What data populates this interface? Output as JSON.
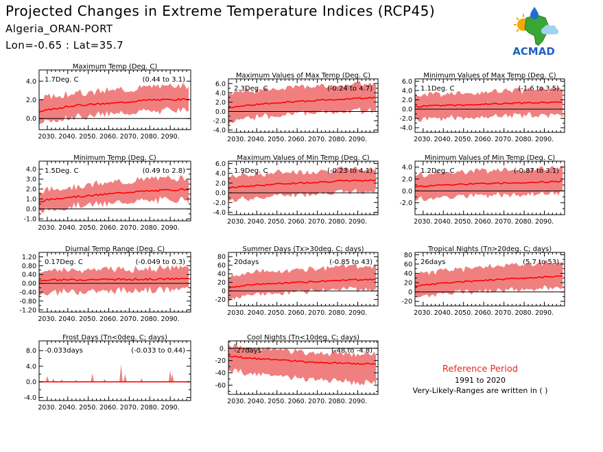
{
  "header": {
    "title": "Projected Changes in Extreme Temperature Indices (RCP45)",
    "station": "Algeria_ORAN-PORT",
    "coords": "Lon=-0.65 : Lat=35.7"
  },
  "logo": {
    "text": "ACMAD"
  },
  "reference": {
    "title": "Reference Period",
    "years": "1991 to 2020",
    "note": "Very-Likely-Ranges are written in ( )"
  },
  "colors": {
    "line": "#ff0000",
    "band": "#f08080",
    "zero": "#000000",
    "ref_title": "#e8281e"
  },
  "chart_data": [
    {
      "type": "area",
      "title": "Maximum Temp (Deg. C)",
      "stat": "1.7Deg. C",
      "range": "(0.44 to 3.1)",
      "ylim": [
        -1.2,
        5.2
      ],
      "yticks": [
        0.0,
        2.0,
        4.0
      ],
      "ytick_labels": [
        "0.0",
        "2.0",
        "4.0"
      ],
      "xlim": [
        2026,
        2100
      ],
      "xticks": [
        2030,
        2040,
        2050,
        2060,
        2070,
        2080,
        2090
      ],
      "xtick_labels": [
        "2030.",
        "2040.",
        "2050.",
        "2060.",
        "2070.",
        "2080.",
        "2090."
      ],
      "x": [
        2026,
        2030,
        2040,
        2050,
        2060,
        2070,
        2080,
        2090,
        2100
      ],
      "mean": [
        0.7,
        0.9,
        1.3,
        1.5,
        1.6,
        1.8,
        2.0,
        2.0,
        2.1
      ],
      "lower": [
        -0.5,
        -0.4,
        0.1,
        0.3,
        0.5,
        0.6,
        0.8,
        0.9,
        0.9
      ],
      "upper": [
        2.0,
        2.3,
        2.6,
        2.8,
        3.0,
        3.2,
        3.4,
        3.5,
        3.6
      ]
    },
    {
      "type": "area",
      "title": "Maximum Values of Max Temp (Deg. C)",
      "stat": "2.3Deg. C",
      "range": "(-0.24 to 4.7)",
      "ylim": [
        -4.5,
        7.0
      ],
      "yticks": [
        -4,
        -3,
        -2,
        -1,
        0,
        1,
        2,
        3,
        4,
        5,
        6
      ],
      "ytick_labels": [
        "-4.0",
        "",
        "-2.0",
        "",
        "0.0",
        "",
        "2.0",
        "",
        "4.0",
        "",
        "6.0"
      ],
      "xlim": [
        2026,
        2100
      ],
      "xticks": [
        2030,
        2040,
        2050,
        2060,
        2070,
        2080,
        2090
      ],
      "xtick_labels": [
        "2030.",
        "2040.",
        "2050.",
        "2060.",
        "2070.",
        "2080.",
        "2090."
      ],
      "x": [
        2026,
        2030,
        2040,
        2050,
        2060,
        2070,
        2080,
        2090,
        2100
      ],
      "mean": [
        0.8,
        1.0,
        1.5,
        1.9,
        2.1,
        2.4,
        2.6,
        2.8,
        3.0
      ],
      "lower": [
        -2.5,
        -2.0,
        -1.2,
        -0.8,
        -0.5,
        -0.3,
        0.0,
        0.1,
        0.2
      ],
      "upper": [
        3.8,
        4.2,
        4.6,
        5.0,
        5.2,
        5.4,
        5.6,
        5.8,
        6.0
      ]
    },
    {
      "type": "area",
      "title": "Minimum Values of Max Temp (Deg. C)",
      "stat": "1.1Deg. C",
      "range": "(-1.6 to 3.5)",
      "ylim": [
        -5.0,
        6.5
      ],
      "yticks": [
        -4,
        -3,
        -2,
        -1,
        0,
        1,
        2,
        3,
        4,
        5,
        6
      ],
      "ytick_labels": [
        "-4.0",
        "",
        "-2.0",
        "",
        "0.0",
        "",
        "2.0",
        "",
        "4.0",
        "",
        "6.0"
      ],
      "xlim": [
        2026,
        2100
      ],
      "xticks": [
        2030,
        2040,
        2050,
        2060,
        2070,
        2080,
        2090
      ],
      "xtick_labels": [
        "2030.",
        "2040.",
        "2050.",
        "2060.",
        "2070.",
        "2080.",
        "2090."
      ],
      "x": [
        2026,
        2030,
        2040,
        2050,
        2060,
        2070,
        2080,
        2090,
        2100
      ],
      "mean": [
        0.5,
        0.6,
        0.8,
        0.9,
        1.1,
        1.2,
        1.3,
        1.4,
        1.5
      ],
      "lower": [
        -2.5,
        -2.2,
        -2.0,
        -1.8,
        -1.6,
        -1.5,
        -1.4,
        -1.3,
        -1.2
      ],
      "upper": [
        2.8,
        3.0,
        3.2,
        3.5,
        3.7,
        3.9,
        4.0,
        4.2,
        4.4
      ]
    },
    {
      "type": "area",
      "title": "Minimum Temp (Deg. C)",
      "stat": "1.5Deg. C",
      "range": "(0.49 to 2.8)",
      "ylim": [
        -1.2,
        4.8
      ],
      "yticks": [
        -1,
        -0.5,
        0,
        0.5,
        1,
        1.5,
        2,
        2.5,
        3,
        3.5,
        4
      ],
      "ytick_labels": [
        "-1.0",
        "",
        "0.0",
        "",
        "1.0",
        "",
        "2.0",
        "",
        "3.0",
        "",
        "4.0"
      ],
      "xlim": [
        2026,
        2100
      ],
      "xticks": [
        2030,
        2040,
        2050,
        2060,
        2070,
        2080,
        2090
      ],
      "xtick_labels": [
        "2030.",
        "2040.",
        "2050.",
        "2060.",
        "2070.",
        "2080.",
        "2090."
      ],
      "x": [
        2026,
        2030,
        2040,
        2050,
        2060,
        2070,
        2080,
        2090,
        2100
      ],
      "mean": [
        0.7,
        0.9,
        1.2,
        1.3,
        1.5,
        1.7,
        1.8,
        1.9,
        2.0
      ],
      "lower": [
        -0.3,
        -0.1,
        0.2,
        0.4,
        0.5,
        0.7,
        0.8,
        0.9,
        1.0
      ],
      "upper": [
        1.6,
        1.9,
        2.2,
        2.4,
        2.6,
        2.8,
        3.0,
        3.1,
        3.2
      ]
    },
    {
      "type": "area",
      "title": "Maximum Values of Min Temp (Deg. C)",
      "stat": "1.9Deg. C",
      "range": "(-0.23 to 4.1)",
      "ylim": [
        -4.5,
        6.5
      ],
      "yticks": [
        -4,
        -3,
        -2,
        -1,
        0,
        1,
        2,
        3,
        4,
        5,
        6
      ],
      "ytick_labels": [
        "-4.0",
        "",
        "-2.0",
        "",
        "0.0",
        "",
        "2.0",
        "",
        "4.0",
        "",
        "6.0"
      ],
      "xlim": [
        2026,
        2100
      ],
      "xticks": [
        2030,
        2040,
        2050,
        2060,
        2070,
        2080,
        2090
      ],
      "xtick_labels": [
        "2030.",
        "2040.",
        "2050.",
        "2060.",
        "2070.",
        "2080.",
        "2090."
      ],
      "x": [
        2026,
        2030,
        2040,
        2050,
        2060,
        2070,
        2080,
        2090,
        2100
      ],
      "mean": [
        1.0,
        1.2,
        1.5,
        1.8,
        2.0,
        2.2,
        2.4,
        2.5,
        2.6
      ],
      "lower": [
        -1.8,
        -1.5,
        -1.0,
        -0.6,
        -0.3,
        -0.1,
        0.1,
        0.2,
        0.3
      ],
      "upper": [
        3.2,
        3.5,
        3.9,
        4.1,
        4.3,
        4.5,
        4.7,
        4.9,
        5.0
      ]
    },
    {
      "type": "area",
      "title": "Minimum Values of Min Temp (Deg. C)",
      "stat": "1.2Deg. C",
      "range": "(-0.87 to 3.1)",
      "ylim": [
        -4.0,
        5.0
      ],
      "yticks": [
        -3,
        -2,
        -1,
        0,
        1,
        2,
        3,
        4
      ],
      "ytick_labels": [
        "",
        "-2.0",
        "",
        "0.0",
        "",
        "2.0",
        "",
        "4.0"
      ],
      "xlim": [
        2026,
        2100
      ],
      "xticks": [
        2030,
        2040,
        2050,
        2060,
        2070,
        2080,
        2090
      ],
      "xtick_labels": [
        "2030.",
        "2040.",
        "2050.",
        "2060.",
        "2070.",
        "2080.",
        "2090."
      ],
      "x": [
        2026,
        2030,
        2040,
        2050,
        2060,
        2070,
        2080,
        2090,
        2100
      ],
      "mean": [
        0.7,
        0.8,
        1.0,
        1.1,
        1.2,
        1.3,
        1.4,
        1.5,
        1.6
      ],
      "lower": [
        -1.5,
        -1.3,
        -1.1,
        -0.9,
        -0.8,
        -0.7,
        -0.6,
        -0.5,
        -0.4
      ],
      "upper": [
        2.6,
        2.8,
        3.0,
        3.2,
        3.3,
        3.5,
        3.6,
        3.7,
        3.8
      ]
    },
    {
      "type": "area",
      "title": "Diurnal Temp Range (Deg. C)",
      "stat": "0.17Deg. C",
      "range": "(-0.049 to 0.3)",
      "ylim": [
        -1.3,
        1.4
      ],
      "yticks": [
        -1.2,
        -1.0,
        -0.8,
        -0.6,
        -0.4,
        -0.2,
        0,
        0.2,
        0.4,
        0.6,
        0.8,
        1.0,
        1.2
      ],
      "ytick_labels": [
        "-1.20",
        "",
        "-0.80",
        "",
        "-0.40",
        "",
        "0.00",
        "",
        "0.40",
        "",
        "0.80",
        "",
        "1.20"
      ],
      "xlim": [
        2026,
        2100
      ],
      "xticks": [
        2030,
        2040,
        2050,
        2060,
        2070,
        2080,
        2090
      ],
      "xtick_labels": [
        "2030.",
        "2040.",
        "2050.",
        "2060.",
        "2070.",
        "2080.",
        "2090."
      ],
      "x": [
        2026,
        2030,
        2040,
        2050,
        2060,
        2070,
        2080,
        2090,
        2100
      ],
      "mean": [
        0.12,
        0.14,
        0.16,
        0.17,
        0.18,
        0.18,
        0.19,
        0.2,
        0.21
      ],
      "lower": [
        -0.5,
        -0.45,
        -0.4,
        -0.35,
        -0.35,
        -0.3,
        -0.3,
        -0.3,
        -0.28
      ],
      "upper": [
        0.5,
        0.55,
        0.6,
        0.65,
        0.65,
        0.65,
        0.66,
        0.68,
        0.7
      ]
    },
    {
      "type": "area",
      "title": "Summer Days (Tx>30deg. C; days)",
      "stat": "20days",
      "range": "(-0.85 to 43)",
      "ylim": [
        -35,
        90
      ],
      "yticks": [
        -20,
        -10,
        0,
        10,
        20,
        30,
        40,
        50,
        60,
        70,
        80
      ],
      "ytick_labels": [
        "-20",
        "",
        "0",
        "",
        "20",
        "",
        "40",
        "",
        "60",
        "",
        "80"
      ],
      "xlim": [
        2026,
        2100
      ],
      "xticks": [
        2030,
        2040,
        2050,
        2060,
        2070,
        2080,
        2090
      ],
      "xtick_labels": [
        "2030.",
        "2040.",
        "2050.",
        "2060.",
        "2070.",
        "2080.",
        "2090."
      ],
      "x": [
        2026,
        2030,
        2040,
        2050,
        2060,
        2070,
        2080,
        2090,
        2100
      ],
      "mean": [
        8,
        11,
        15,
        18,
        20,
        22,
        24,
        26,
        28
      ],
      "lower": [
        -18,
        -14,
        -9,
        -5,
        -2,
        0,
        2,
        4,
        5
      ],
      "upper": [
        34,
        38,
        43,
        47,
        50,
        53,
        56,
        58,
        60
      ]
    },
    {
      "type": "area",
      "title": "Tropical Nights (Tn>20deg. C; days)",
      "stat": "26days",
      "range": "(5.7 to 53)",
      "ylim": [
        -30,
        85
      ],
      "yticks": [
        -20,
        -10,
        0,
        10,
        20,
        30,
        40,
        50,
        60,
        70,
        80
      ],
      "ytick_labels": [
        "-20",
        "",
        "0",
        "",
        "20",
        "",
        "40",
        "",
        "60",
        "",
        "80"
      ],
      "xlim": [
        2026,
        2100
      ],
      "xticks": [
        2030,
        2040,
        2050,
        2060,
        2070,
        2080,
        2090
      ],
      "xtick_labels": [
        "2030.",
        "2040.",
        "2050.",
        "2060.",
        "2070.",
        "2080.",
        "2090."
      ],
      "x": [
        2026,
        2030,
        2040,
        2050,
        2060,
        2070,
        2080,
        2090,
        2100
      ],
      "mean": [
        12,
        15,
        19,
        22,
        25,
        28,
        30,
        32,
        35
      ],
      "lower": [
        -12,
        -8,
        -4,
        0,
        2,
        4,
        6,
        8,
        10
      ],
      "upper": [
        38,
        42,
        46,
        50,
        54,
        57,
        60,
        62,
        64
      ]
    },
    {
      "type": "area",
      "title": "Frost Days (Tn<0deg. C; days)",
      "stat": "-0.033days",
      "range": "(-0.033 to 0.44)",
      "ylim": [
        -4.8,
        10.5
      ],
      "yticks": [
        -4,
        -2,
        0,
        2,
        4,
        6,
        8
      ],
      "ytick_labels": [
        "-4.0",
        "",
        "0.0",
        "",
        "4.0",
        "",
        "8.0"
      ],
      "xlim": [
        2026,
        2100
      ],
      "xticks": [
        2030,
        2040,
        2050,
        2060,
        2070,
        2080,
        2090
      ],
      "xtick_labels": [
        "2030.",
        "2040.",
        "2050.",
        "2060.",
        "2070.",
        "2080.",
        "2090."
      ],
      "x": [
        2026,
        2030,
        2040,
        2050,
        2060,
        2070,
        2080,
        2090,
        2100
      ],
      "mean": [
        0,
        0,
        0,
        0,
        0,
        0,
        0,
        0,
        0
      ],
      "lower": [
        0,
        0,
        0,
        0,
        0,
        0,
        0,
        0,
        0
      ],
      "upper": [
        0,
        0,
        0,
        0,
        0,
        0,
        0,
        0,
        0
      ],
      "spikes": [
        [
          2030,
          1.5
        ],
        [
          2033,
          0.8
        ],
        [
          2037,
          0.6
        ],
        [
          2044,
          0.5
        ],
        [
          2052,
          2.2
        ],
        [
          2058,
          0.7
        ],
        [
          2066,
          4.5
        ],
        [
          2068,
          2.0
        ],
        [
          2076,
          0.9
        ],
        [
          2090,
          3.0
        ],
        [
          2091,
          2.0
        ]
      ]
    },
    {
      "type": "area",
      "title": "Cool Nights (Tn<10deg. C; days)",
      "stat": "-27days",
      "range": "(-48 to -4.8)",
      "ylim": [
        -75,
        12
      ],
      "yticks": [
        -70,
        -60,
        -50,
        -40,
        -30,
        -20,
        -10,
        0,
        10
      ],
      "ytick_labels": [
        "",
        "-60",
        "",
        "-40",
        "",
        "-20",
        "",
        "0.",
        ""
      ],
      "xlim": [
        2026,
        2100
      ],
      "xticks": [
        2030,
        2040,
        2050,
        2060,
        2070,
        2080,
        2090
      ],
      "xtick_labels": [
        "2030.",
        "2040.",
        "2050.",
        "2060.",
        "2070.",
        "2080.",
        "2090."
      ],
      "x": [
        2026,
        2030,
        2040,
        2050,
        2060,
        2070,
        2080,
        2090,
        2100
      ],
      "mean": [
        -12,
        -14,
        -17,
        -19,
        -21,
        -23,
        -24,
        -25,
        -26
      ],
      "lower": [
        -35,
        -38,
        -42,
        -46,
        -49,
        -51,
        -53,
        -55,
        -57
      ],
      "upper": [
        5,
        3,
        0,
        -3,
        -5,
        -7,
        -8,
        -9,
        -10
      ]
    }
  ]
}
